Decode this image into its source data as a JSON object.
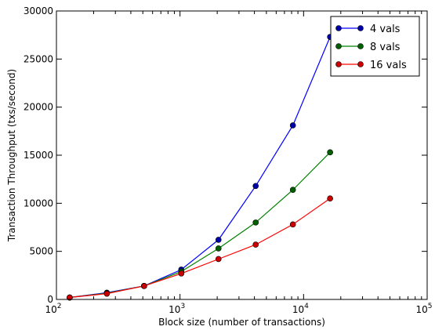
{
  "chart_data": {
    "type": "line",
    "title": "",
    "xlabel": "Block size (number of transactions)",
    "ylabel": "Transaction Throughput (txs/second)",
    "x_scale": "log",
    "xlim": [
      100,
      100000
    ],
    "ylim": [
      0,
      30000
    ],
    "x": [
      128,
      256,
      512,
      1024,
      2048,
      4096,
      8192,
      16384
    ],
    "x_ticks": [
      {
        "value": 100,
        "base": "10",
        "exp": "2"
      },
      {
        "value": 1000,
        "base": "10",
        "exp": "3"
      },
      {
        "value": 10000,
        "base": "10",
        "exp": "4"
      },
      {
        "value": 100000,
        "base": "10",
        "exp": "5"
      }
    ],
    "y_ticks": [
      0,
      5000,
      10000,
      15000,
      20000,
      25000,
      30000
    ],
    "legend_position": "top-right",
    "series": [
      {
        "name": "4 vals",
        "color": "#0000ff",
        "marker_fill": "#0000aa",
        "values": [
          200,
          700,
          1400,
          3100,
          6200,
          11800,
          18100,
          27300
        ]
      },
      {
        "name": "8 vals",
        "color": "#008000",
        "marker_fill": "#006000",
        "values": [
          200,
          650,
          1400,
          2900,
          5300,
          8000,
          11400,
          15300
        ]
      },
      {
        "name": "16 vals",
        "color": "#ff0000",
        "marker_fill": "#cc0000",
        "values": [
          200,
          600,
          1400,
          2700,
          4200,
          5700,
          7800,
          10500
        ]
      }
    ]
  }
}
